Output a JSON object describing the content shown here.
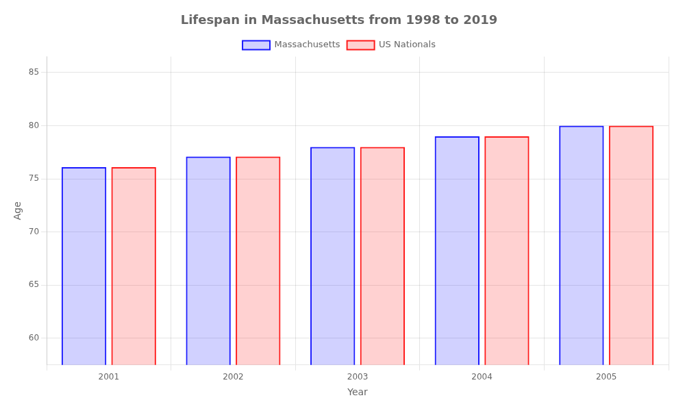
{
  "chart_data": {
    "type": "bar",
    "title": "Lifespan in Massachusetts from 1998 to 2019",
    "x_label": "Year",
    "y_label": "Age",
    "categories": [
      "2001",
      "2002",
      "2003",
      "2004",
      "2005"
    ],
    "series": [
      {
        "name": "Massachusetts",
        "color": "#1a1aff",
        "values": [
          76.1,
          77.1,
          78.0,
          79.0,
          80.0
        ]
      },
      {
        "name": "US Nationals",
        "color": "#ff1a1a",
        "values": [
          76.1,
          77.1,
          78.0,
          79.0,
          80.0
        ]
      }
    ],
    "ylim": [
      57.5,
      86.5
    ],
    "yticks": [
      60,
      65,
      70,
      75,
      80,
      85
    ],
    "grid": true,
    "legend": "top"
  }
}
